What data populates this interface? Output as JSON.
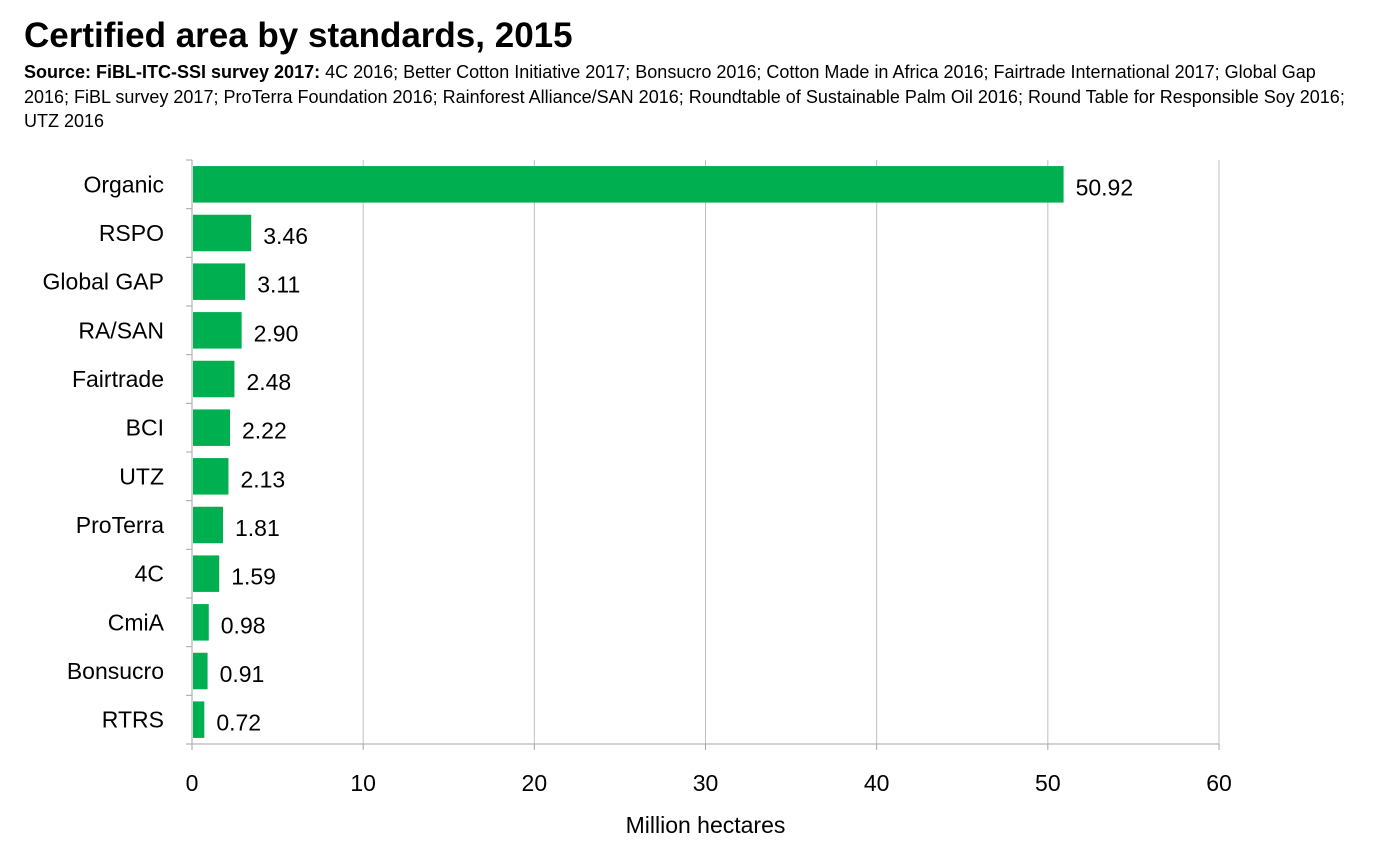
{
  "title": "Certified area by standards, 2015",
  "source": {
    "label": "Source: FiBL-ITC-SSI survey 2017:",
    "text": " 4C 2016; Better Cotton Initiative 2017; Bonsucro 2016; Cotton Made in Africa 2016; Fairtrade International 2017; Global Gap 2016; FiBL survey 2017; ProTerra Foundation 2016; Rainforest Alliance/SAN 2016; Roundtable of Sustainable Palm Oil 2016; Round Table for Responsible Soy 2016; UTZ 2016"
  },
  "chart_data": {
    "type": "bar",
    "orientation": "horizontal",
    "title": "Certified area by standards, 2015",
    "xlabel": "Million hectares",
    "ylabel": "",
    "xlim": [
      0,
      60
    ],
    "xticks": [
      0,
      10,
      20,
      30,
      40,
      50,
      60
    ],
    "grid": true,
    "legend": "none",
    "bar_color": "#00b050",
    "categories": [
      "Organic",
      "RSPO",
      "Global GAP",
      "RA/SAN",
      "Fairtrade",
      "BCI",
      "UTZ",
      "ProTerra",
      "4C",
      "CmiA",
      "Bonsucro",
      "RTRS"
    ],
    "values": [
      50.92,
      3.46,
      3.11,
      2.9,
      2.48,
      2.22,
      2.13,
      1.81,
      1.59,
      0.98,
      0.91,
      0.72
    ],
    "data_labels": [
      "50.92",
      "3.46",
      "3.11",
      "2.90",
      "2.48",
      "2.22",
      "2.13",
      "1.81",
      "1.59",
      "0.98",
      "0.91",
      "0.72"
    ]
  }
}
